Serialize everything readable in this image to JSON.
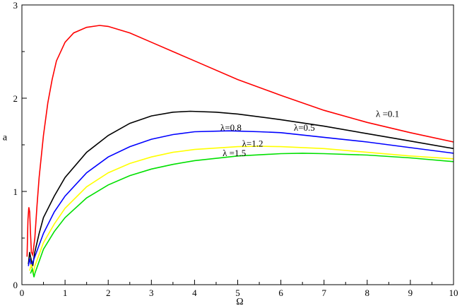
{
  "chart_data": {
    "type": "line",
    "title": "",
    "xlabel": "Ω",
    "ylabel": "a",
    "xlim": [
      0,
      10
    ],
    "ylim": [
      0,
      3
    ],
    "xticks": [
      "0",
      "1",
      "2",
      "3",
      "4",
      "5",
      "6",
      "7",
      "8",
      "9",
      "10"
    ],
    "yticks": [
      "0",
      "1",
      "2",
      "3"
    ],
    "grid": false,
    "legend": "none",
    "series": [
      {
        "name": "λ=0.1",
        "label": "λ =0.1",
        "color": "#ff0000",
        "points": [
          [
            0.12,
            0.3
          ],
          [
            0.14,
            0.7
          ],
          [
            0.16,
            0.83
          ],
          [
            0.18,
            0.78
          ],
          [
            0.2,
            0.55
          ],
          [
            0.22,
            0.35
          ],
          [
            0.25,
            0.32
          ],
          [
            0.3,
            0.5
          ],
          [
            0.35,
            0.85
          ],
          [
            0.4,
            1.15
          ],
          [
            0.5,
            1.6
          ],
          [
            0.6,
            1.95
          ],
          [
            0.7,
            2.2
          ],
          [
            0.8,
            2.4
          ],
          [
            1.0,
            2.6
          ],
          [
            1.2,
            2.7
          ],
          [
            1.5,
            2.76
          ],
          [
            1.8,
            2.78
          ],
          [
            2.0,
            2.77
          ],
          [
            2.5,
            2.7
          ],
          [
            3.0,
            2.6
          ],
          [
            3.5,
            2.5
          ],
          [
            4.0,
            2.4
          ],
          [
            5.0,
            2.2
          ],
          [
            6.0,
            2.03
          ],
          [
            7.0,
            1.87
          ],
          [
            8.0,
            1.74
          ],
          [
            9.0,
            1.63
          ],
          [
            10.0,
            1.53
          ]
        ],
        "label_pos": [
          8.2,
          1.8
        ]
      },
      {
        "name": "λ=0.5",
        "label": "λ=0.5",
        "color": "#000000",
        "points": [
          [
            0.15,
            0.22
          ],
          [
            0.18,
            0.35
          ],
          [
            0.2,
            0.3
          ],
          [
            0.25,
            0.2
          ],
          [
            0.3,
            0.35
          ],
          [
            0.4,
            0.55
          ],
          [
            0.5,
            0.72
          ],
          [
            0.75,
            0.95
          ],
          [
            1.0,
            1.15
          ],
          [
            1.5,
            1.42
          ],
          [
            2.0,
            1.6
          ],
          [
            2.5,
            1.73
          ],
          [
            3.0,
            1.81
          ],
          [
            3.5,
            1.85
          ],
          [
            3.9,
            1.86
          ],
          [
            4.5,
            1.85
          ],
          [
            5.0,
            1.83
          ],
          [
            6.0,
            1.77
          ],
          [
            7.0,
            1.7
          ],
          [
            8.0,
            1.62
          ],
          [
            9.0,
            1.54
          ],
          [
            10.0,
            1.46
          ]
        ],
        "label_pos": [
          6.3,
          1.65
        ]
      },
      {
        "name": "λ=0.8",
        "label": "λ=0.8",
        "color": "#0000ff",
        "points": [
          [
            0.15,
            0.2
          ],
          [
            0.18,
            0.28
          ],
          [
            0.22,
            0.2
          ],
          [
            0.3,
            0.3
          ],
          [
            0.5,
            0.55
          ],
          [
            0.75,
            0.78
          ],
          [
            1.0,
            0.95
          ],
          [
            1.5,
            1.2
          ],
          [
            2.0,
            1.37
          ],
          [
            2.5,
            1.48
          ],
          [
            3.0,
            1.56
          ],
          [
            3.5,
            1.61
          ],
          [
            4.0,
            1.64
          ],
          [
            4.8,
            1.65
          ],
          [
            5.5,
            1.64
          ],
          [
            6.0,
            1.63
          ],
          [
            7.0,
            1.58
          ],
          [
            8.0,
            1.53
          ],
          [
            9.0,
            1.47
          ],
          [
            10.0,
            1.41
          ]
        ],
        "label_pos": [
          4.6,
          1.65
        ]
      },
      {
        "name": "λ=1.2",
        "label": "λ=1.2",
        "color": "#ffff00",
        "points": [
          [
            0.18,
            0.15
          ],
          [
            0.22,
            0.22
          ],
          [
            0.26,
            0.12
          ],
          [
            0.3,
            0.2
          ],
          [
            0.5,
            0.45
          ],
          [
            0.75,
            0.65
          ],
          [
            1.0,
            0.82
          ],
          [
            1.5,
            1.05
          ],
          [
            2.0,
            1.2
          ],
          [
            2.5,
            1.3
          ],
          [
            3.0,
            1.37
          ],
          [
            3.5,
            1.42
          ],
          [
            4.0,
            1.45
          ],
          [
            5.0,
            1.48
          ],
          [
            5.5,
            1.485
          ],
          [
            6.0,
            1.48
          ],
          [
            7.0,
            1.46
          ],
          [
            8.0,
            1.42
          ],
          [
            9.0,
            1.38
          ],
          [
            10.0,
            1.35
          ]
        ],
        "label_pos": [
          5.1,
          1.48
        ]
      },
      {
        "name": "λ=1.5",
        "label": "λ =1.5",
        "color": "#00e000",
        "points": [
          [
            0.2,
            0.12
          ],
          [
            0.24,
            0.17
          ],
          [
            0.28,
            0.08
          ],
          [
            0.3,
            0.12
          ],
          [
            0.5,
            0.38
          ],
          [
            0.75,
            0.57
          ],
          [
            1.0,
            0.72
          ],
          [
            1.5,
            0.93
          ],
          [
            2.0,
            1.07
          ],
          [
            2.5,
            1.17
          ],
          [
            3.0,
            1.24
          ],
          [
            3.5,
            1.29
          ],
          [
            4.0,
            1.33
          ],
          [
            5.0,
            1.38
          ],
          [
            6.0,
            1.405
          ],
          [
            6.5,
            1.41
          ],
          [
            7.0,
            1.405
          ],
          [
            8.0,
            1.39
          ],
          [
            9.0,
            1.36
          ],
          [
            10.0,
            1.32
          ]
        ],
        "label_pos": [
          4.65,
          1.38
        ]
      }
    ]
  }
}
